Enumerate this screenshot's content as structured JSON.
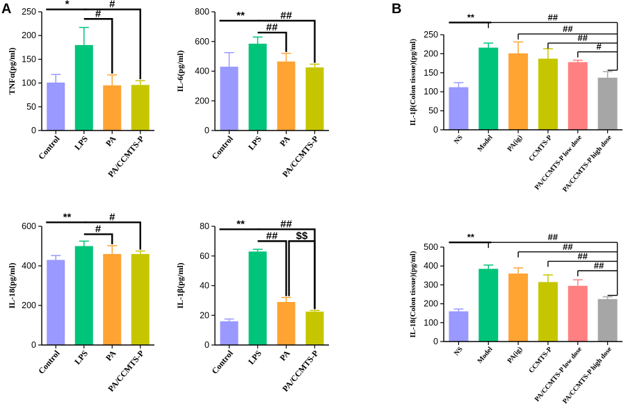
{
  "panel_labels": [
    "A",
    "B"
  ],
  "colors": {
    "control": "#9999ff",
    "lps": "#00c47a",
    "pa": "#ffa333",
    "pa_ccmts": "#c6c600",
    "low_dose": "#ff8080",
    "high_dose": "#a6a6a6"
  },
  "chart_data": [
    {
      "type": "bar",
      "panel": "A",
      "ylabel": "TNFα(pg/ml)",
      "ylim": [
        0,
        250
      ],
      "yticks": [
        0,
        50,
        100,
        150,
        200,
        250
      ],
      "categories": [
        "Control",
        "LPS",
        "PA",
        "PA/CCMTS-P"
      ],
      "values": [
        101,
        180,
        95,
        96
      ],
      "errors": [
        17,
        37,
        22,
        9
      ],
      "color_keys": [
        "control",
        "lps",
        "pa",
        "pa_ccmts"
      ],
      "annotations": [
        {
          "text": "*",
          "from": 0,
          "to": 1,
          "y": 255,
          "type": "flat"
        },
        {
          "text": "#",
          "from": 1,
          "to": 2,
          "y": 235,
          "drop": 2,
          "type": "drop"
        },
        {
          "text": "#",
          "from": 1,
          "to": 3,
          "y": 255,
          "drop": 3,
          "type": "drop"
        }
      ]
    },
    {
      "type": "bar",
      "panel": "A",
      "ylabel": "IL-6(pg/ml)",
      "ylim": [
        0,
        800
      ],
      "yticks": [
        0,
        200,
        400,
        600,
        800
      ],
      "categories": [
        "Control",
        "LPS",
        "PA",
        "PA/CCMTS-P"
      ],
      "values": [
        430,
        585,
        465,
        425
      ],
      "errors": [
        95,
        45,
        55,
        22
      ],
      "color_keys": [
        "control",
        "lps",
        "pa",
        "pa_ccmts"
      ],
      "annotations": [
        {
          "text": "**",
          "from": 0,
          "to": 1,
          "y": 740,
          "type": "flat"
        },
        {
          "text": "##",
          "from": 1,
          "to": 2,
          "y": 660,
          "drop": 2,
          "type": "drop"
        },
        {
          "text": "##",
          "from": 1,
          "to": 3,
          "y": 740,
          "drop": 3,
          "type": "drop"
        }
      ]
    },
    {
      "type": "bar",
      "panel": "A",
      "ylabel": "IL-18(pg/ml)",
      "ylim": [
        0,
        600
      ],
      "yticks": [
        0,
        200,
        400,
        600
      ],
      "categories": [
        "Control",
        "LPS",
        "PA",
        "PA/CCMTS-P"
      ],
      "values": [
        430,
        500,
        460,
        460
      ],
      "errors": [
        22,
        25,
        42,
        15
      ],
      "color_keys": [
        "control",
        "lps",
        "pa",
        "pa_ccmts"
      ],
      "annotations": [
        {
          "text": "**",
          "from": 0,
          "to": 1,
          "y": 620,
          "type": "flat"
        },
        {
          "text": "#",
          "from": 1,
          "to": 2,
          "y": 560,
          "drop": 2,
          "type": "drop"
        },
        {
          "text": "#",
          "from": 1,
          "to": 3,
          "y": 620,
          "drop": 3,
          "type": "drop"
        }
      ]
    },
    {
      "type": "bar",
      "panel": "A",
      "ylabel": "IL-1β(pg/ml)",
      "ylim": [
        0,
        80
      ],
      "yticks": [
        0,
        20,
        40,
        60,
        80
      ],
      "categories": [
        "Control",
        "LPS",
        "PA",
        "PA/CCMTS-P"
      ],
      "values": [
        16,
        63,
        29,
        22.5
      ],
      "errors": [
        1.5,
        1.5,
        3,
        0.8
      ],
      "color_keys": [
        "control",
        "lps",
        "pa",
        "pa_ccmts"
      ],
      "annotations": [
        {
          "text": "**",
          "from": 0,
          "to": 1,
          "y": 78,
          "type": "flat"
        },
        {
          "text": "##",
          "from": 1,
          "to": 2,
          "y": 70,
          "drop": 2,
          "type": "drop"
        },
        {
          "text": "##",
          "from": 1,
          "to": 3,
          "y": 78,
          "drop": 3,
          "type": "drop"
        },
        {
          "text": "$$",
          "from": 2,
          "to": 3,
          "y": 70,
          "type": "bridge"
        }
      ]
    },
    {
      "type": "bar",
      "panel": "B",
      "ylabel": "IL-1β(Colon tissue)(pg/ml)",
      "ylim": [
        0,
        250
      ],
      "yticks": [
        0,
        50,
        100,
        150,
        200,
        250
      ],
      "categories": [
        "NS",
        "Model",
        "PA(ig)",
        "CCMTS-P",
        "PA/CCMTS-P low dose",
        "PA/CCMTS-P high dose"
      ],
      "values": [
        112,
        216,
        201,
        187,
        178,
        137
      ],
      "errors": [
        12,
        12,
        30,
        26,
        5,
        16
      ],
      "color_keys": [
        "control",
        "lps",
        "pa",
        "pa_ccmts",
        "low_dose",
        "high_dose"
      ],
      "annotations": [
        {
          "text": "**",
          "from": 0,
          "to": 1,
          "y": 282,
          "type": "flat"
        },
        {
          "text": "##",
          "from": 1,
          "to": 5,
          "y": 282,
          "type": "step"
        },
        {
          "text": "##",
          "from": 2,
          "to": 5,
          "y": 252,
          "type": "step"
        },
        {
          "text": "##",
          "from": 3,
          "to": 5,
          "y": 228,
          "type": "step"
        },
        {
          "text": "#",
          "from": 4,
          "to": 5,
          "y": 205,
          "type": "step"
        }
      ]
    },
    {
      "type": "bar",
      "panel": "B",
      "ylabel": "IL-18(Colon tissue)(pg/ml)",
      "ylim": [
        0,
        500
      ],
      "yticks": [
        0,
        100,
        200,
        300,
        400,
        500
      ],
      "categories": [
        "NS",
        "Model",
        "PA(ig)",
        "CCMTS-P",
        "PA/CCMTS-P low dose",
        "PA/CCMTS-P high dose"
      ],
      "values": [
        160,
        385,
        360,
        315,
        295,
        225
      ],
      "errors": [
        12,
        20,
        30,
        38,
        32,
        12
      ],
      "color_keys": [
        "control",
        "lps",
        "pa",
        "pa_ccmts",
        "low_dose",
        "high_dose"
      ],
      "annotations": [
        {
          "text": "**",
          "from": 0,
          "to": 1,
          "y": 525,
          "type": "flat"
        },
        {
          "text": "##",
          "from": 1,
          "to": 5,
          "y": 525,
          "type": "step"
        },
        {
          "text": "##",
          "from": 2,
          "to": 5,
          "y": 475,
          "type": "step"
        },
        {
          "text": "##",
          "from": 3,
          "to": 5,
          "y": 425,
          "type": "step"
        },
        {
          "text": "##",
          "from": 4,
          "to": 5,
          "y": 375,
          "type": "step"
        }
      ]
    }
  ]
}
